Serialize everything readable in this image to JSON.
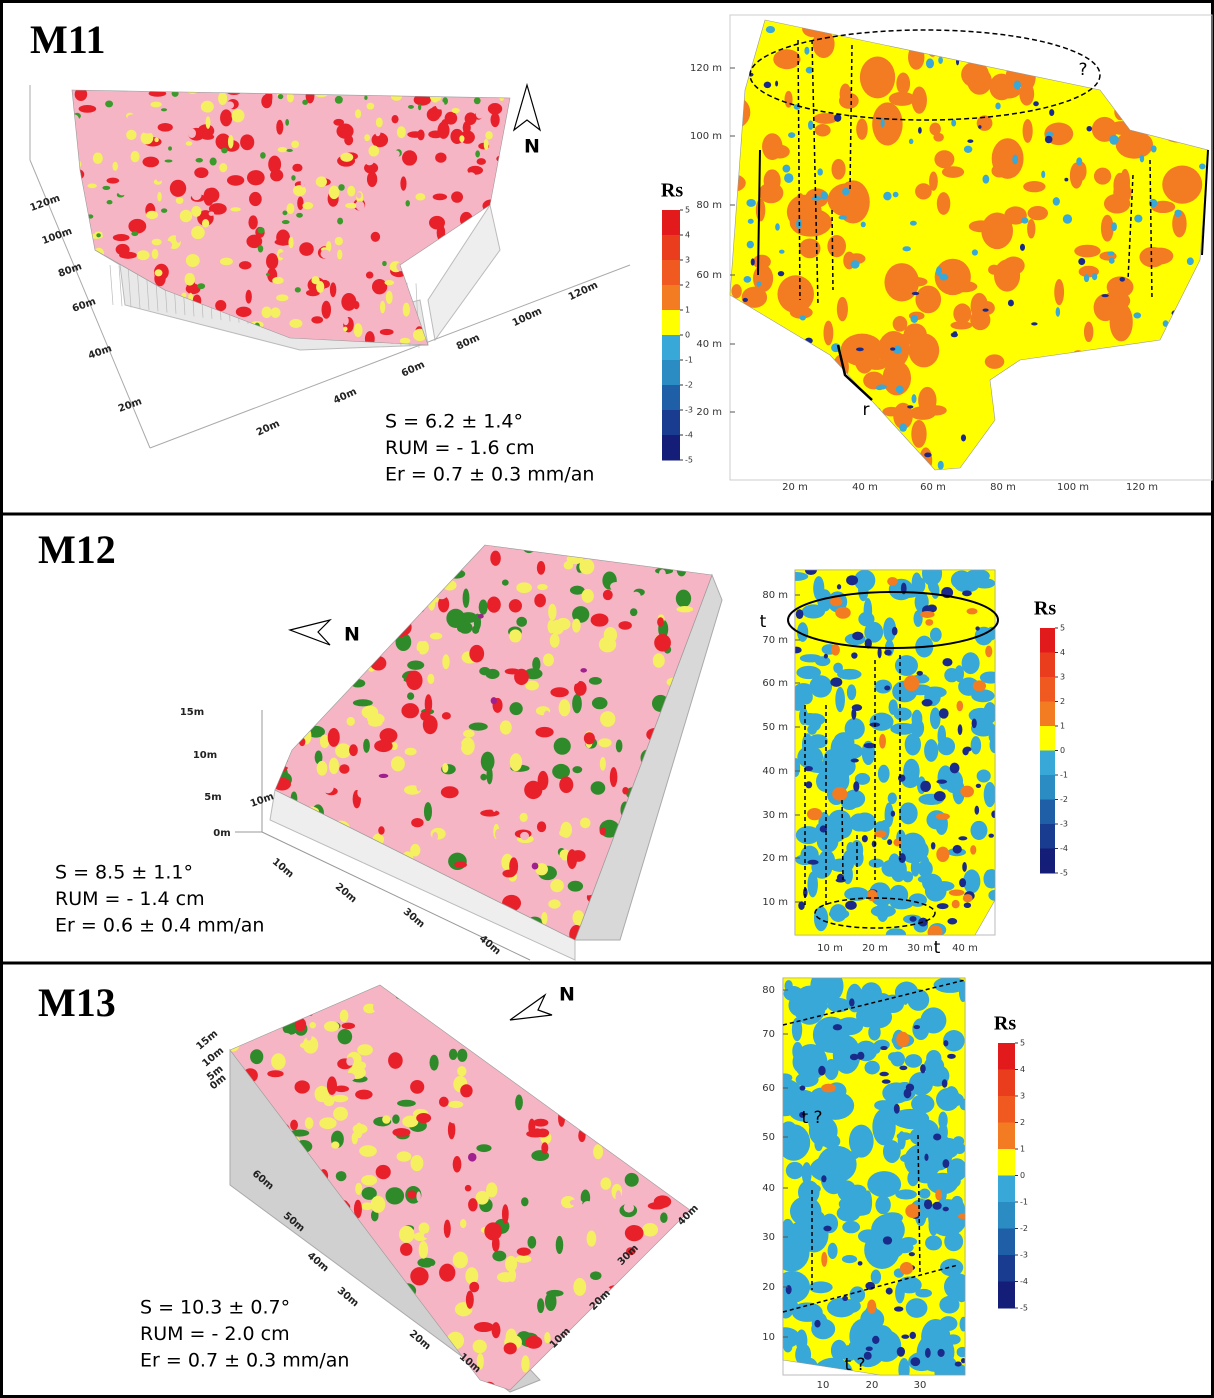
{
  "panels": [
    {
      "label": "M11",
      "north": "N",
      "stats": [
        "S = 6.2 ± 1.4°",
        "RUM = - 1.6 cm",
        "Er = 0.7 ± 0.3 mm/an"
      ],
      "surface_ticks": [
        [
          "120m",
          "100m",
          "80m",
          "60m",
          "40m",
          "20m"
        ],
        [
          "20m",
          "40m",
          "60m",
          "80m",
          "100m",
          "120m"
        ]
      ],
      "map_yticks": [
        "120 m",
        "100 m",
        "80 m",
        "60 m",
        "40 m",
        "20 m"
      ],
      "map_xticks": [
        "20 m",
        "40 m",
        "60 m",
        "80 m",
        "100 m",
        "120 m"
      ],
      "colorbar": {
        "title": "Rs",
        "ticks": [
          "5",
          "4",
          "3",
          "2",
          "1",
          "0",
          "-1",
          "-2",
          "-3",
          "-4",
          "-5"
        ]
      },
      "annotations": [
        "?",
        "r"
      ]
    },
    {
      "label": "M12",
      "north": "N",
      "stats": [
        "S = 8.5 ± 1.1°",
        "RUM = - 1.4 cm",
        "Er = 0.6 ± 0.4 mm/an"
      ],
      "surface_ticks": [
        [
          "15m",
          "10m",
          "5m",
          "0m"
        ],
        [
          "10m",
          "10m",
          "20m",
          "30m",
          "40m"
        ]
      ],
      "map_yticks": [
        "80 m",
        "70 m",
        "60 m",
        "50 m",
        "40 m",
        "30 m",
        "20 m",
        "10 m"
      ],
      "map_xticks": [
        "10 m",
        "20 m",
        "30 m",
        "40 m"
      ],
      "colorbar": {
        "title": "Rs",
        "ticks": [
          "5",
          "4",
          "3",
          "2",
          "1",
          "0",
          "-1",
          "-2",
          "-3",
          "-4",
          "-5"
        ]
      },
      "annotations": [
        "t",
        "t"
      ]
    },
    {
      "label": "M13",
      "north": "N",
      "stats": [
        "S = 10.3 ± 0.7°",
        "RUM = - 2.0 cm",
        "Er = 0.7 ± 0.3 mm/an"
      ],
      "surface_ticks": [
        [
          "15m",
          "10m",
          "5m",
          "0m"
        ],
        [
          "60m",
          "50m",
          "40m",
          "30m",
          "20m",
          "10m"
        ],
        [
          "40m",
          "30m",
          "20m",
          "10m"
        ]
      ],
      "map_yticks": [
        "80",
        "70",
        "60",
        "50",
        "40",
        "30",
        "20",
        "10"
      ],
      "map_xticks": [
        "10",
        "20",
        "30"
      ],
      "colorbar": {
        "title": "Rs",
        "ticks": [
          "5",
          "4",
          "3",
          "2",
          "1",
          "0",
          "-1",
          "-2",
          "-3",
          "-4",
          "-5"
        ]
      },
      "annotations": [
        "t ?",
        "t ?"
      ]
    }
  ]
}
